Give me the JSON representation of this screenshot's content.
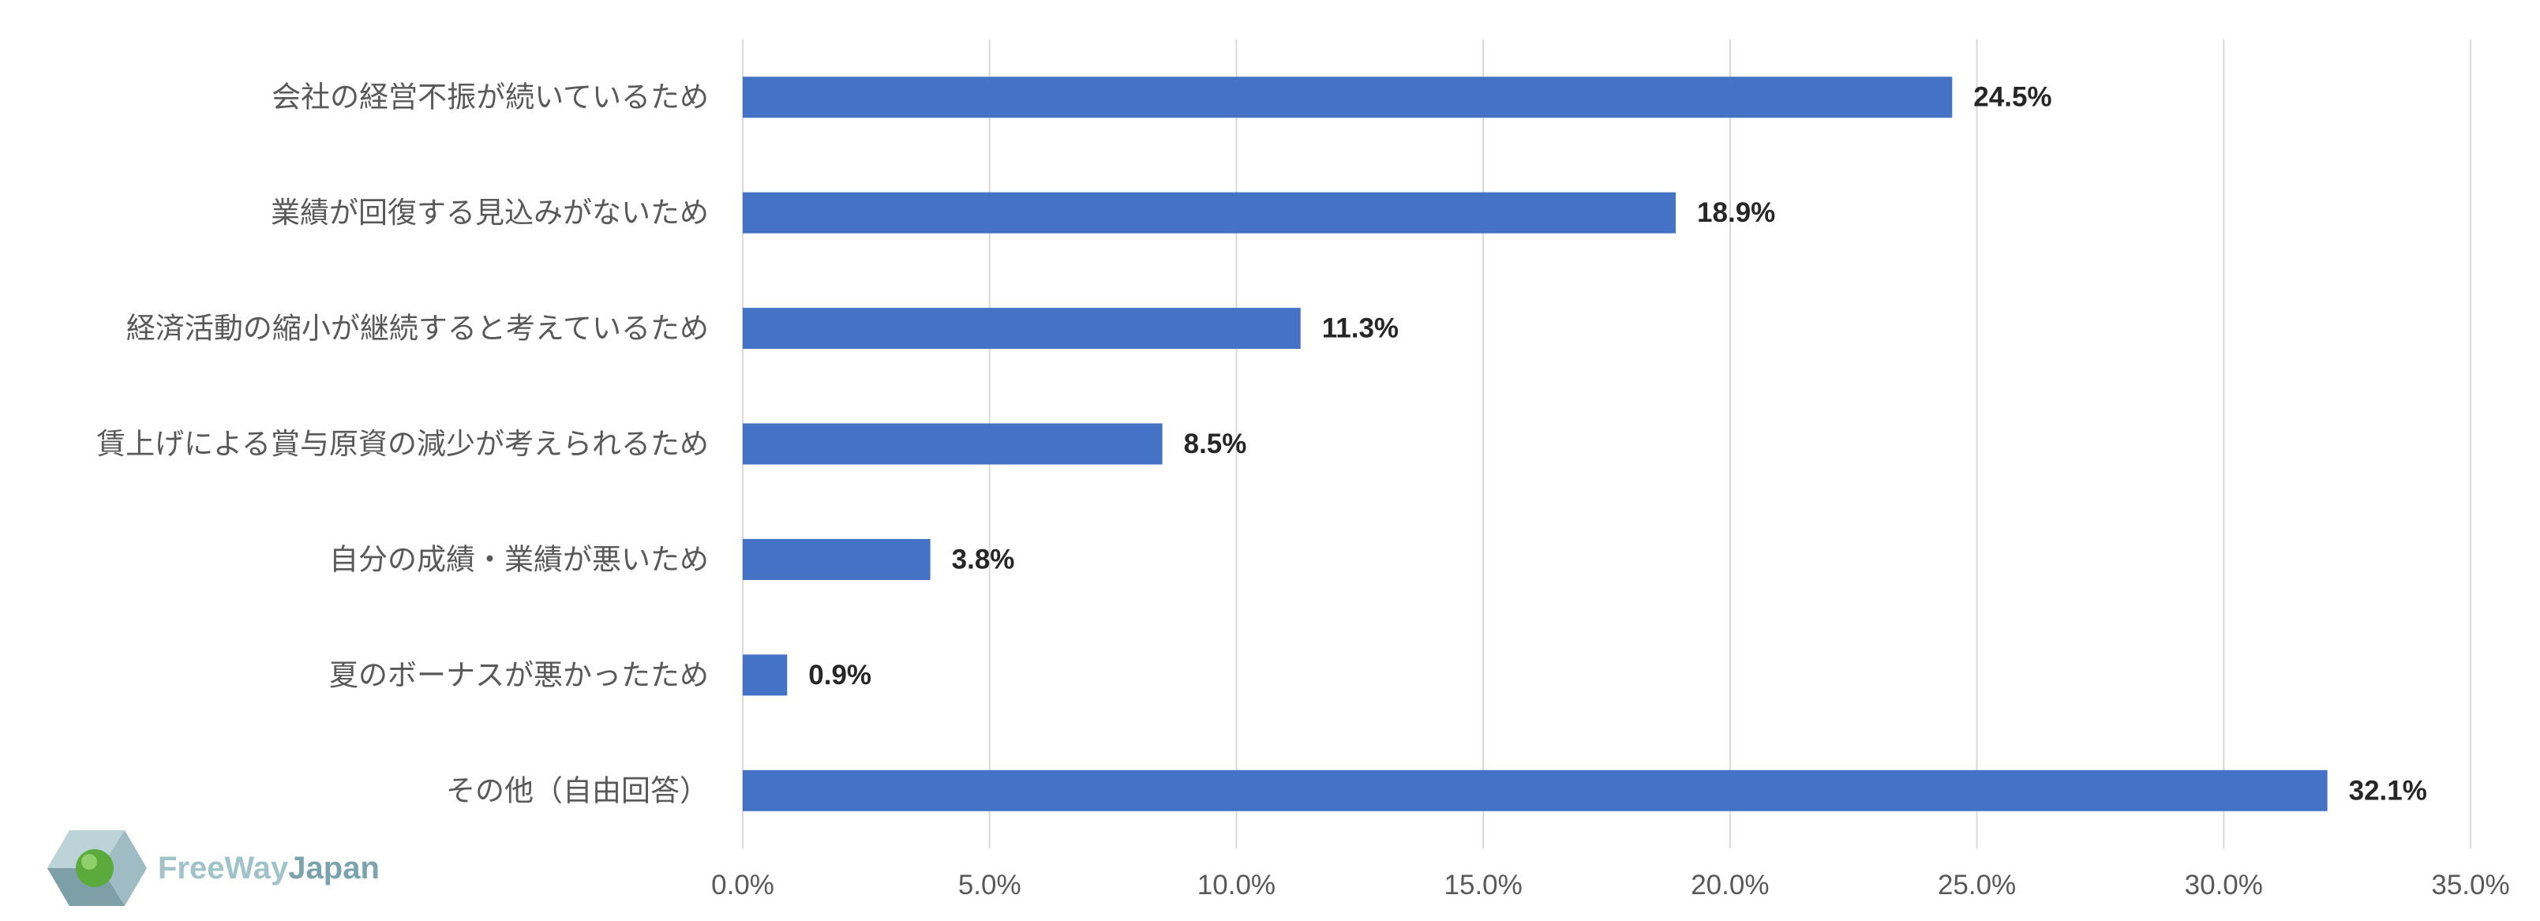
{
  "chart_data": {
    "type": "bar",
    "orientation": "horizontal",
    "categories": [
      "会社の経営不振が続いているため",
      "業績が回復する見込みがないため",
      "経済活動の縮小が継続すると考えているため",
      "賃上げによる賞与原資の減少が考えられるため",
      "自分の成績・業績が悪いため",
      "夏のボーナスが悪かったため",
      "その他（自由回答）"
    ],
    "values": [
      24.5,
      18.9,
      11.3,
      8.5,
      3.8,
      0.9,
      32.1
    ],
    "data_labels": [
      "24.5%",
      "18.9%",
      "11.3%",
      "8.5%",
      "3.8%",
      "0.9%",
      "32.1%"
    ],
    "xlim": [
      0,
      35
    ],
    "xticks": [
      0,
      5,
      10,
      15,
      20,
      25,
      30,
      35
    ],
    "xtick_labels": [
      "0.0%",
      "5.0%",
      "10.0%",
      "15.0%",
      "20.0%",
      "25.0%",
      "30.0%",
      "35.0%"
    ],
    "title": "",
    "xlabel": "",
    "ylabel": "",
    "grid": "vertical",
    "legend": "none",
    "bar_color": "#4472c4"
  },
  "logo": {
    "part1": "FreeWay",
    "part2": "Japan"
  }
}
